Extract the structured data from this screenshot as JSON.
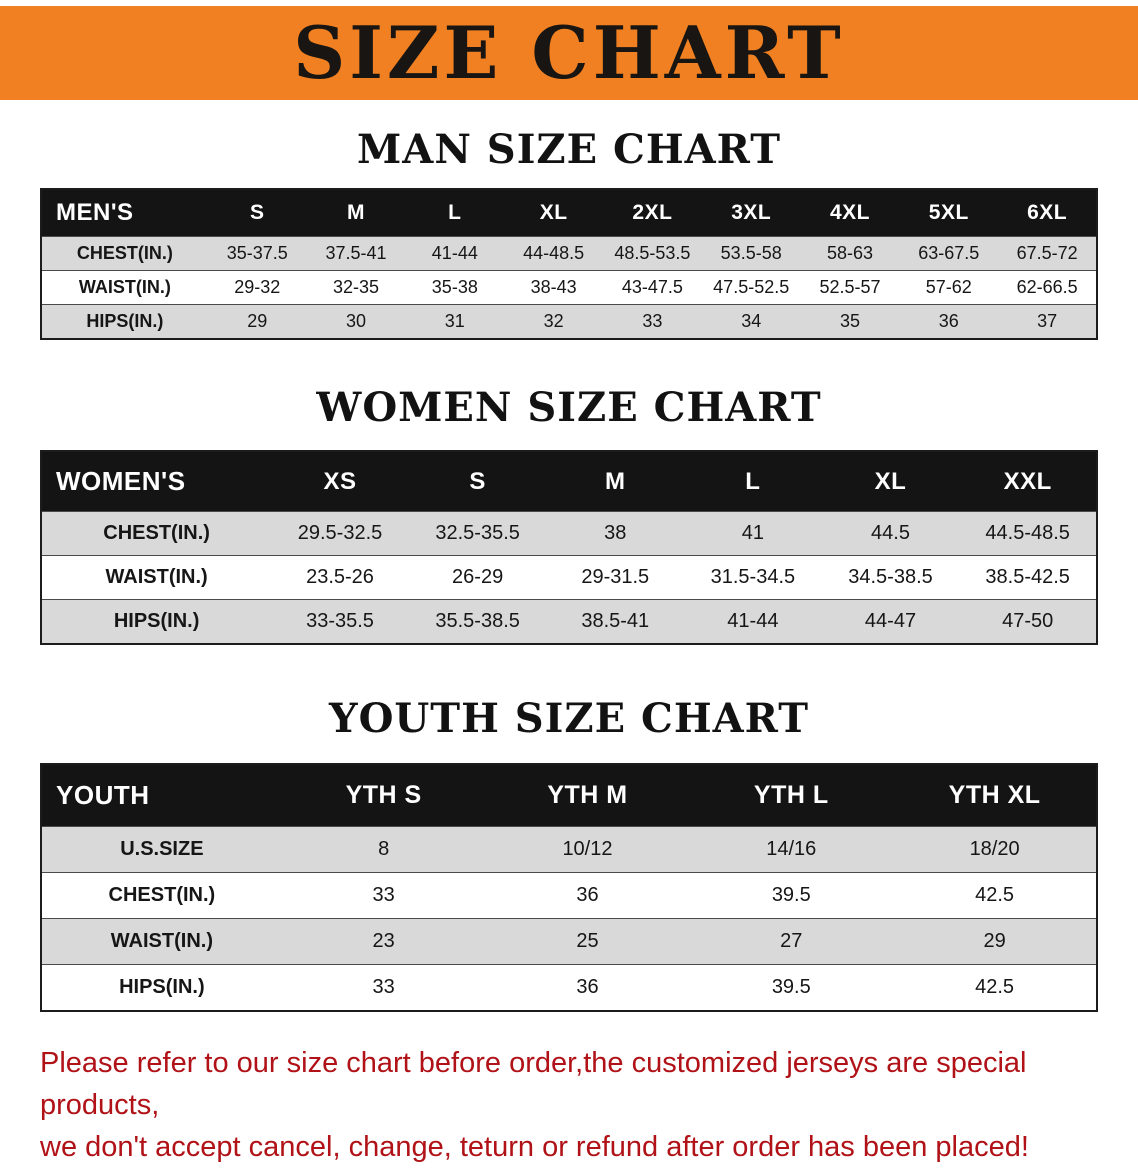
{
  "banner": {
    "title": "SIZE CHART",
    "bg_color": "#f08021",
    "text_color": "#181512"
  },
  "sections": [
    {
      "heading": "MAN SIZE CHART",
      "table": {
        "header": [
          "MEN'S",
          "S",
          "M",
          "L",
          "XL",
          "2XL",
          "3XL",
          "4XL",
          "5XL",
          "6XL"
        ],
        "rows": [
          {
            "label": "CHEST(IN.)",
            "values": [
              "35-37.5",
              "37.5-41",
              "41-44",
              "44-48.5",
              "48.5-53.5",
              "53.5-58",
              "58-63",
              "63-67.5",
              "67.5-72"
            ]
          },
          {
            "label": "WAIST(IN.)",
            "values": [
              "29-32",
              "32-35",
              "35-38",
              "38-43",
              "43-47.5",
              "47.5-52.5",
              "52.5-57",
              "57-62",
              "62-66.5"
            ]
          },
          {
            "label": "HIPS(IN.)",
            "values": [
              "29",
              "30",
              "31",
              "32",
              "33",
              "34",
              "35",
              "36",
              "37"
            ]
          }
        ]
      }
    },
    {
      "heading": "WOMEN SIZE CHART",
      "table": {
        "header": [
          "WOMEN'S",
          "XS",
          "S",
          "M",
          "L",
          "XL",
          "XXL"
        ],
        "rows": [
          {
            "label": "CHEST(IN.)",
            "values": [
              "29.5-32.5",
              "32.5-35.5",
              "38",
              "41",
              "44.5",
              "44.5-48.5"
            ]
          },
          {
            "label": "WAIST(IN.)",
            "values": [
              "23.5-26",
              "26-29",
              "29-31.5",
              "31.5-34.5",
              "34.5-38.5",
              "38.5-42.5"
            ]
          },
          {
            "label": "HIPS(IN.)",
            "values": [
              "33-35.5",
              "35.5-38.5",
              "38.5-41",
              "41-44",
              "44-47",
              "47-50"
            ]
          }
        ]
      }
    },
    {
      "heading": "YOUTH SIZE CHART",
      "table": {
        "header": [
          "YOUTH",
          "YTH S",
          "YTH M",
          "YTH L",
          "YTH XL"
        ],
        "rows": [
          {
            "label": "U.S.SIZE",
            "values": [
              "8",
              "10/12",
              "14/16",
              "18/20"
            ]
          },
          {
            "label": "CHEST(IN.)",
            "values": [
              "33",
              "36",
              "39.5",
              "42.5"
            ]
          },
          {
            "label": "WAIST(IN.)",
            "values": [
              "23",
              "25",
              "27",
              "29"
            ]
          },
          {
            "label": "HIPS(IN.)",
            "values": [
              "33",
              "36",
              "39.5",
              "42.5"
            ]
          }
        ]
      }
    }
  ],
  "footer_note": {
    "line1": "Please refer to our size chart before order,the customized jerseys are special products,",
    "line2": "we don't accept cancel, change, teturn or refund after order has been placed!",
    "color": "#b01217"
  }
}
